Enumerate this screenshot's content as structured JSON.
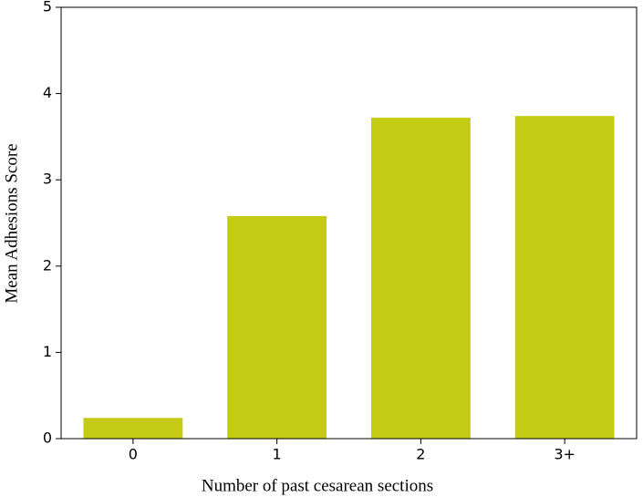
{
  "chart_data": {
    "type": "bar",
    "x_label": "Number of past cesarean sections",
    "y_label": "Mean Adhesions Score",
    "categories": [
      "0",
      "1",
      "2",
      "3+"
    ],
    "values": [
      0.24,
      2.58,
      3.72,
      3.74
    ],
    "color": "#c5cb14",
    "ylim": [
      0,
      5
    ],
    "yticks": [
      0,
      1,
      2,
      3,
      4,
      5
    ],
    "grid": false
  }
}
